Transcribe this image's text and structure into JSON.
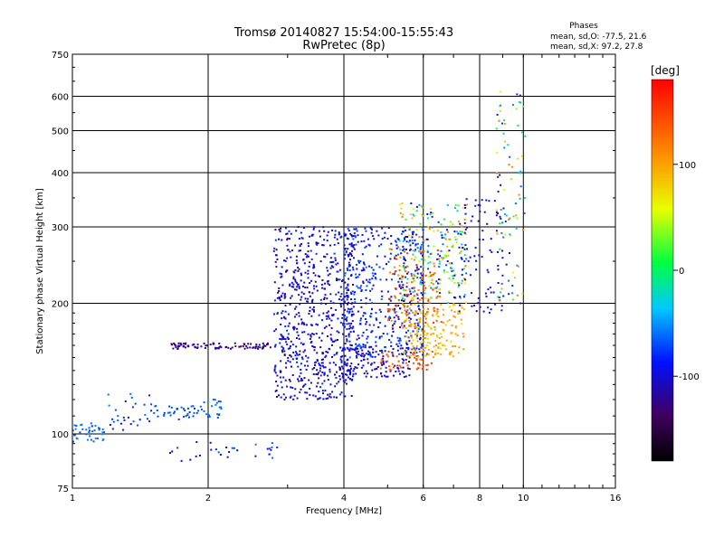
{
  "chart_data": {
    "type": "scatter",
    "title_line1": "Tromsø 20140827 15:54:00-15:55:43",
    "title_line2": "RwPretec (8p)",
    "stats": {
      "heading": "Phases",
      "line_o": "mean, sd,O: -77.5, 21.6",
      "line_x": "mean, sd,X:  97.2, 27.8"
    },
    "xlabel": "Frequency [MHz]",
    "ylabel": "Stationary phase Virtual Height [km]",
    "x_scale": "log",
    "y_scale": "log",
    "xlim": [
      1,
      16
    ],
    "ylim": [
      75,
      750
    ],
    "x_ticks": [
      1,
      2,
      4,
      6,
      8,
      10,
      16
    ],
    "x_tick_labels": [
      "1",
      "2",
      "4",
      "6",
      "8",
      "10",
      "16"
    ],
    "y_ticks": [
      75,
      100,
      200,
      300,
      400,
      500,
      600,
      750
    ],
    "y_tick_labels": [
      "75",
      "100",
      "200",
      "300",
      "400",
      "500",
      "600",
      "750"
    ],
    "grid": true,
    "colorbar": {
      "label": "[deg]",
      "min": -180,
      "max": 180,
      "ticks": [
        100,
        0,
        -100
      ],
      "tick_labels": [
        "100",
        "0",
        "-100"
      ]
    },
    "clusters": [
      {
        "f": [
          1.0,
          1.18
        ],
        "h": [
          96,
          106
        ],
        "phase": [
          -70,
          -50
        ],
        "n": 40
      },
      {
        "f": [
          1.2,
          1.5
        ],
        "h": [
          102,
          125
        ],
        "phase": [
          -95,
          -55
        ],
        "n": 30
      },
      {
        "f": [
          1.5,
          1.9
        ],
        "h": [
          108,
          116
        ],
        "phase": [
          -80,
          -60
        ],
        "n": 35
      },
      {
        "f": [
          1.9,
          2.15
        ],
        "h": [
          108,
          120
        ],
        "phase": [
          -70,
          -50
        ],
        "n": 25
      },
      {
        "f": [
          1.65,
          2.75
        ],
        "h": [
          157,
          162
        ],
        "phase": [
          -135,
          -115
        ],
        "n": 90
      },
      {
        "f": [
          1.6,
          2.9
        ],
        "h": [
          86,
          96
        ],
        "phase": [
          -120,
          -60
        ],
        "n": 30
      },
      {
        "f": [
          2.8,
          4.2
        ],
        "h": [
          120,
          300
        ],
        "phase": [
          -125,
          -75
        ],
        "n": 650
      },
      {
        "f": [
          3.4,
          5.6
        ],
        "h": [
          135,
          160
        ],
        "phase": [
          -120,
          -90
        ],
        "n": 160
      },
      {
        "f": [
          4.0,
          6.0
        ],
        "h": [
          150,
          300
        ],
        "phase": [
          -110,
          -60
        ],
        "n": 450
      },
      {
        "f": [
          4.8,
          6.3
        ],
        "h": [
          140,
          155
        ],
        "phase": [
          120,
          160
        ],
        "n": 50
      },
      {
        "f": [
          5.0,
          6.6
        ],
        "h": [
          175,
          270
        ],
        "phase": [
          110,
          165
        ],
        "n": 130
      },
      {
        "f": [
          5.4,
          7.4
        ],
        "h": [
          150,
          200
        ],
        "phase": [
          70,
          110
        ],
        "n": 160
      },
      {
        "f": [
          5.3,
          7.5
        ],
        "h": [
          200,
          340
        ],
        "phase": [
          -100,
          120
        ],
        "n": 220
      },
      {
        "f": [
          7.0,
          9.0
        ],
        "h": [
          190,
          350
        ],
        "phase": [
          -120,
          -80
        ],
        "n": 90
      },
      {
        "f": [
          8.7,
          10.1
        ],
        "h": [
          200,
          620
        ],
        "phase": [
          -115,
          130
        ],
        "n": 90
      }
    ]
  }
}
